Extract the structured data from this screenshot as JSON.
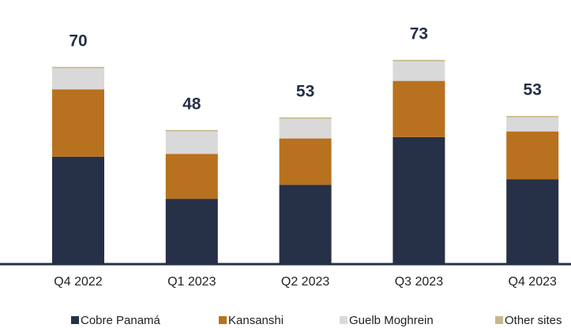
{
  "chart_data": {
    "type": "stacked_bar",
    "categories": [
      "Q4 2022",
      "Q1 2023",
      "Q2 2023",
      "Q3 2023",
      "Q4 2023"
    ],
    "series": [
      {
        "name": "Cobre Panamá",
        "color": "#263047",
        "values": [
          38,
          23,
          28,
          45,
          30
        ]
      },
      {
        "name": "Kansanshi",
        "color": "#b8711f",
        "values": [
          24,
          16,
          16.5,
          20,
          17
        ]
      },
      {
        "name": "Guelb Moghrein",
        "color": "#d9d9d9",
        "values": [
          7.5,
          8,
          7,
          7,
          5
        ]
      },
      {
        "name": "Other sites",
        "color": "#c8b98a",
        "values": [
          0.5,
          0.5,
          0.5,
          0.5,
          0.5
        ]
      }
    ],
    "totals": [
      70,
      48,
      53,
      73,
      53
    ],
    "legend": "bottom"
  }
}
